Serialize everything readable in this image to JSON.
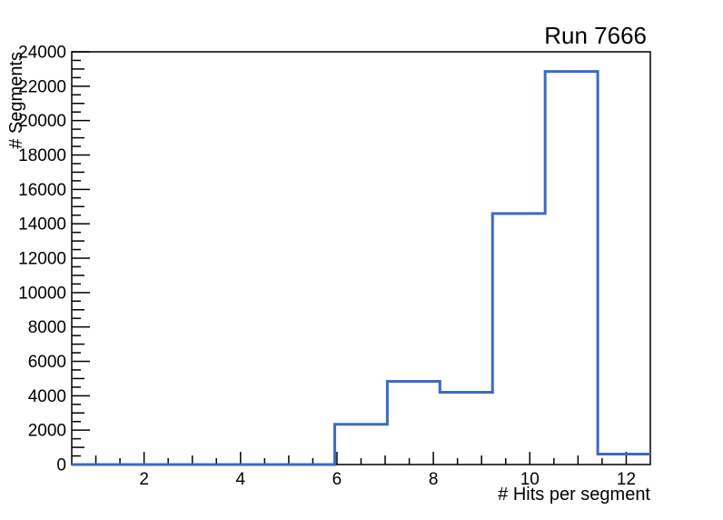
{
  "window": {
    "background": "#ffffff"
  },
  "title": "Run 7666",
  "chart_data": {
    "type": "histogram-step",
    "title": "Run 7666",
    "xlabel": "# Hits per segment",
    "ylabel": "# Segments",
    "xlim": [
      0.5,
      12.5
    ],
    "ylim": [
      0,
      24000
    ],
    "n_bins": 11,
    "bin_edges": [
      0.5,
      1.591,
      2.682,
      3.773,
      4.864,
      5.955,
      7.045,
      8.136,
      9.227,
      10.318,
      11.409,
      12.5
    ],
    "counts": [
      0,
      0,
      0,
      0,
      0,
      2340,
      4840,
      4200,
      14600,
      22860,
      610
    ],
    "x_major_ticks": [
      2,
      4,
      6,
      8,
      10,
      12
    ],
    "x_major_tick_labels": [
      "2",
      "4",
      "6",
      "8",
      "10",
      "12"
    ],
    "x_medium_tick_step": 1,
    "x_minor_tick_step": 0.5,
    "y_major_ticks": [
      0,
      2000,
      4000,
      6000,
      8000,
      10000,
      12000,
      14000,
      16000,
      18000,
      20000,
      22000,
      24000
    ],
    "y_major_tick_labels": [
      "0",
      "2000",
      "4000",
      "6000",
      "8000",
      "10000",
      "12000",
      "14000",
      "16000",
      "18000",
      "20000",
      "22000",
      "24000"
    ],
    "y_medium_tick_step": 1000,
    "y_minor_tick_step": 500,
    "grid": false,
    "legend": null,
    "line_color": "#3a6bc6",
    "axis_color": "#000000",
    "text_color": "#000000"
  }
}
